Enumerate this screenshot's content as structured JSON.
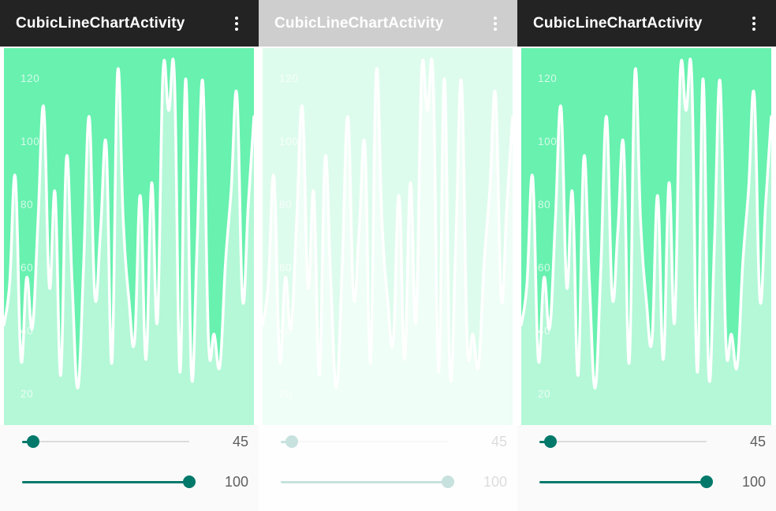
{
  "app_bar": {
    "title": "CubicLineChartActivity",
    "menu_icon": "vertical-ellipsis-overflow",
    "background": "#232323"
  },
  "panels": [
    {
      "label": "screenshot-left",
      "faded": false
    },
    {
      "label": "screenshot-middle",
      "faded": true
    },
    {
      "label": "screenshot-right",
      "faded": false
    }
  ],
  "sliders": [
    {
      "value": "45",
      "fraction": 0.065
    },
    {
      "value": "100",
      "fraction": 1.0
    }
  ],
  "colors": {
    "chart_background": "#68f1af",
    "chart_line": "#ffffff",
    "chart_fill": "rgba(255,255,255,0.5)",
    "axis_label": "rgba(255,255,255,0.72)",
    "accent_teal": "#00796b",
    "track_inactive": "#dcdcdc",
    "controls_background": "#fafafa",
    "value_text": "#5f5f5f",
    "appbar_background": "#232323",
    "fade_overlay": "rgba(255,255,255,0.78)"
  },
  "chart_data": {
    "type": "area",
    "subtype": "cubic-bezier-line",
    "title": "",
    "xlabel": "",
    "ylabel": "",
    "x_axis_labels": "none",
    "y_axis_position": "inside-left",
    "y_ticks": [
      120,
      100,
      80,
      60,
      40,
      20
    ],
    "ylim": [
      10,
      130
    ],
    "point_count": 45,
    "values": [
      42,
      55,
      89,
      31,
      57,
      41,
      75,
      111,
      54,
      84,
      26,
      95,
      55,
      22,
      60,
      108,
      51,
      72,
      99,
      30,
      122,
      75,
      50,
      37,
      83,
      31,
      87,
      43,
      122,
      110,
      121,
      27,
      120,
      26,
      68,
      119,
      37,
      39,
      29,
      62,
      85,
      115,
      50,
      80,
      108
    ],
    "cubic_intensity": 0.2,
    "legend": "none",
    "grid": "off"
  }
}
